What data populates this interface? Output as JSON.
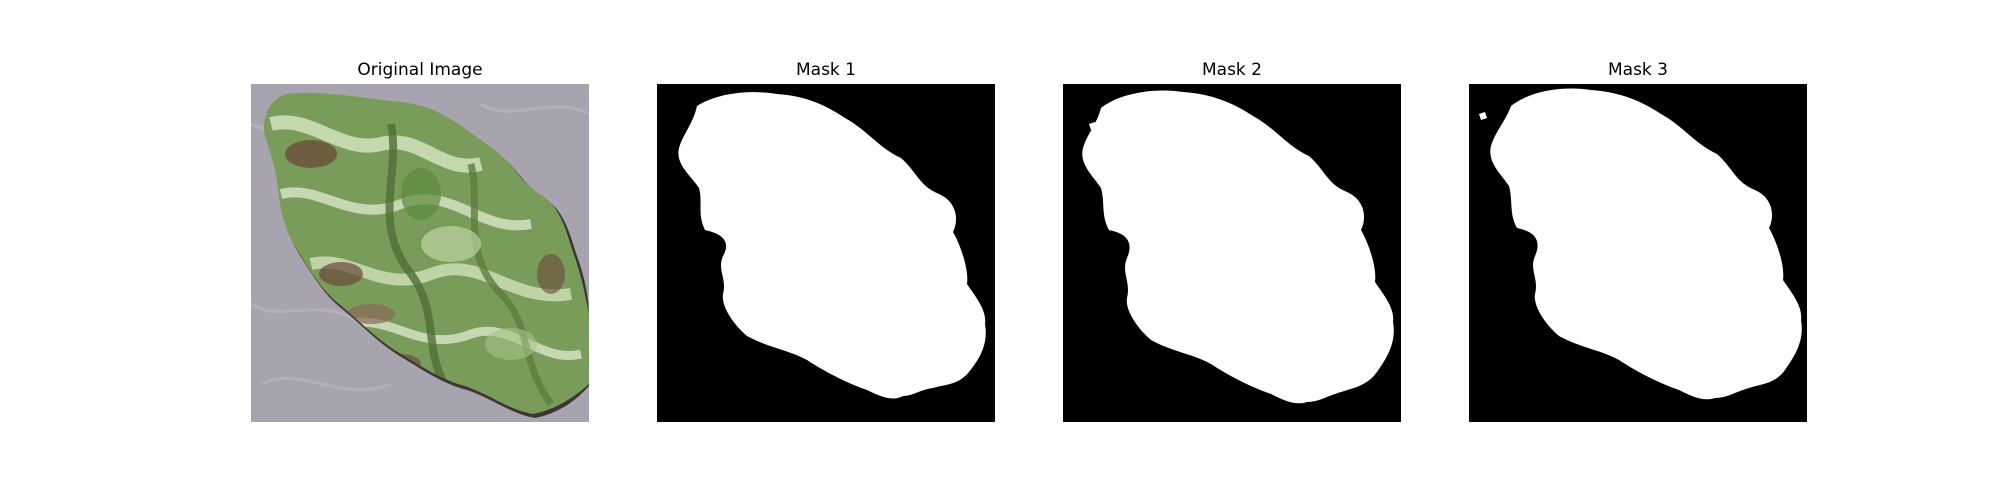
{
  "panels": [
    {
      "title": "Original Image",
      "kind": "photo"
    },
    {
      "title": "Mask 1",
      "kind": "mask"
    },
    {
      "title": "Mask 2",
      "kind": "mask"
    },
    {
      "title": "Mask 3",
      "kind": "mask"
    }
  ],
  "colors": {
    "figure_background": "#ffffff",
    "mask_foreground": "#ffffff",
    "mask_background": "#000000",
    "photo_background": "#a8a4af",
    "leaf_green": "#7a9c5a",
    "leaf_light": "#d8e6c2",
    "leaf_brown": "#6b4a3a"
  }
}
